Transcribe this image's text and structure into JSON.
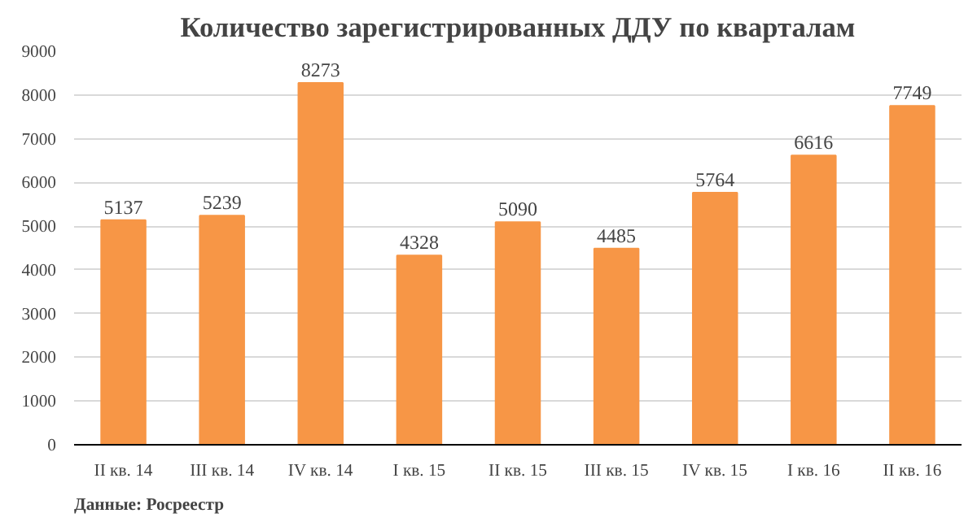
{
  "chart_data": {
    "type": "bar",
    "title": "Количество зарегистрированных ДДУ по кварталам",
    "categories": [
      "II кв. 14",
      "III кв. 14",
      "IV кв. 14",
      "I кв. 15",
      "II кв. 15",
      "III кв. 15",
      "IV кв. 15",
      "I кв. 16",
      "II кв. 16"
    ],
    "values": [
      5137,
      5239,
      8273,
      4328,
      5090,
      4485,
      5764,
      6616,
      7749
    ],
    "color": "#f79646",
    "data_labels": true,
    "ylim": [
      0,
      9000
    ],
    "yticks": [
      0,
      1000,
      2000,
      3000,
      4000,
      5000,
      6000,
      7000,
      8000,
      9000
    ],
    "grid": "y",
    "annotations": [
      "Данные: Росреестр"
    ]
  }
}
